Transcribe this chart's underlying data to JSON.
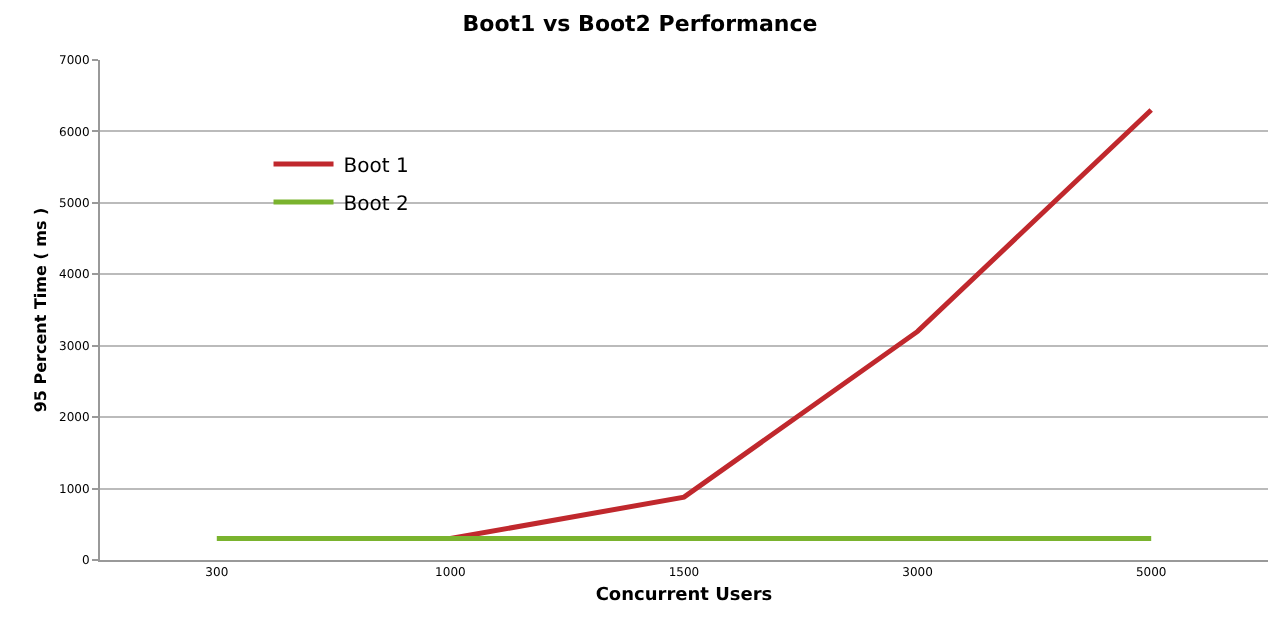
{
  "chart_data": {
    "type": "line",
    "title": "Boot1 vs Boot2 Performance",
    "xlabel": "Concurrent Users",
    "ylabel": "95 Percent Time ( ms )",
    "categories": [
      "300",
      "1000",
      "1500",
      "3000",
      "5000"
    ],
    "series": [
      {
        "name": "Boot 1",
        "color": "#c0282d",
        "values": [
          null,
          300,
          880,
          3200,
          6300
        ]
      },
      {
        "name": "Boot 2",
        "color": "#7ab32e",
        "values": [
          300,
          300,
          300,
          300,
          300
        ]
      }
    ],
    "ylim": [
      0,
      7000
    ],
    "yticks": [
      0,
      1000,
      2000,
      3000,
      4000,
      5000,
      6000,
      7000
    ],
    "grid": "y",
    "legend": "top left",
    "marker": "none",
    "line_style": "solid"
  }
}
